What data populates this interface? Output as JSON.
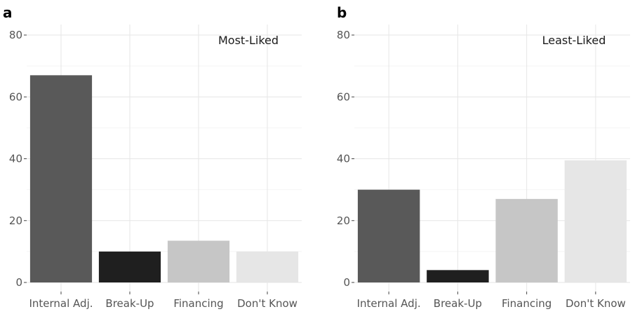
{
  "chart_data": [
    {
      "panel": "a",
      "type": "bar",
      "annotation": "Most-Liked",
      "categories": [
        "Internal Adj.",
        "Break-Up",
        "Financing",
        "Don't Know"
      ],
      "values": [
        67,
        10,
        13.5,
        10
      ],
      "colors": [
        "#595959",
        "#1f1f1f",
        "#c6c6c6",
        "#e6e6e6"
      ],
      "y_ticks": [
        "0",
        "20",
        "40",
        "60",
        "80"
      ],
      "ylim": [
        0,
        80
      ],
      "xlabel": "",
      "ylabel": "",
      "grid": true
    },
    {
      "panel": "b",
      "type": "bar",
      "annotation": "Least-Liked",
      "categories": [
        "Internal Adj.",
        "Break-Up",
        "Financing",
        "Don't Know"
      ],
      "values": [
        30,
        4,
        27,
        39.5
      ],
      "colors": [
        "#595959",
        "#1f1f1f",
        "#c6c6c6",
        "#e6e6e6"
      ],
      "y_ticks": [
        "0",
        "20",
        "40",
        "60",
        "80"
      ],
      "ylim": [
        0,
        80
      ],
      "xlabel": "",
      "ylabel": "",
      "grid": true
    }
  ]
}
